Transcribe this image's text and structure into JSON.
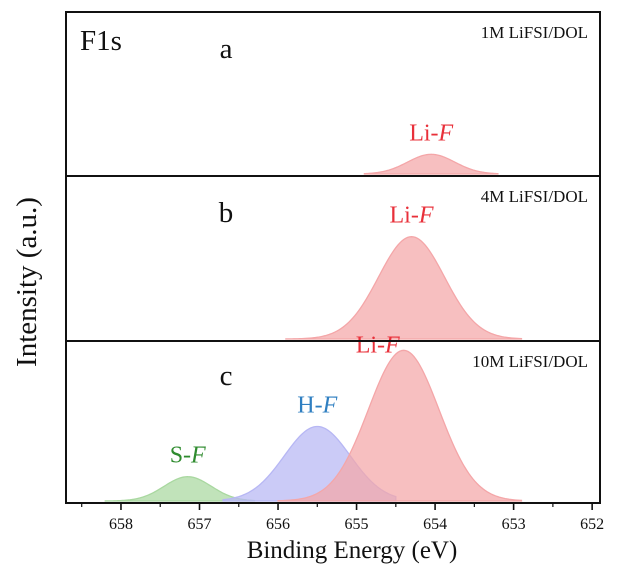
{
  "chart_data": {
    "type": "area",
    "element_label": "F1s",
    "xlabel": "Binding Energy (eV)",
    "ylabel": "Intensity (a.u.)",
    "xlim": [
      658.7,
      651.9
    ],
    "x_ticks": [
      658,
      657,
      656,
      655,
      654,
      653,
      652
    ],
    "panels": [
      {
        "letter": "a",
        "sample": "1M LiFSI/DOL",
        "peaks": [
          {
            "label_prefix": "Li-",
            "label_italic": "F",
            "color": "#e8303a",
            "fill": "#f4a6a8",
            "center": 654.05,
            "sigma": 0.3,
            "height": 0.12,
            "range": [
              654.9,
              653.2
            ]
          }
        ]
      },
      {
        "letter": "b",
        "sample": "4M LiFSI/DOL",
        "peaks": [
          {
            "label_prefix": "Li-",
            "label_italic": "F",
            "color": "#e8303a",
            "fill": "#f4a6a8",
            "center": 654.3,
            "sigma": 0.42,
            "height": 0.62,
            "range": [
              655.9,
              652.9
            ]
          }
        ]
      },
      {
        "letter": "c",
        "sample": "10M LiFSI/DOL",
        "peaks": [
          {
            "label_prefix": "S-",
            "label_italic": "F",
            "color": "#2e8b2e",
            "fill": "#a9d8a0",
            "center": 657.15,
            "sigma": 0.3,
            "height": 0.15,
            "range": [
              658.2,
              656.3
            ]
          },
          {
            "label_prefix": "H-",
            "label_italic": "F",
            "color": "#2f7fc1",
            "fill": "#b7b7f4",
            "center": 655.5,
            "sigma": 0.42,
            "height": 0.46,
            "range": [
              656.7,
              654.5
            ]
          },
          {
            "label_prefix": "Li-",
            "label_italic": "F",
            "color": "#e8303a",
            "fill": "#f4a6a8",
            "center": 654.4,
            "sigma": 0.45,
            "height": 0.93,
            "range": [
              656.0,
              652.9
            ]
          }
        ]
      }
    ]
  }
}
